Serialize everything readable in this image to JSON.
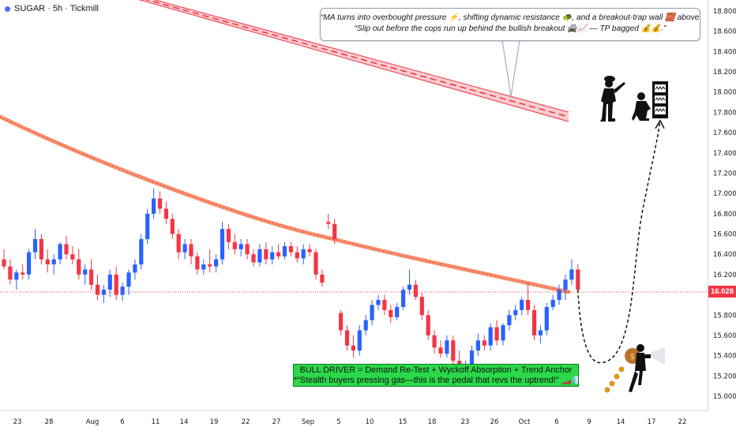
{
  "header": {
    "symbol_title": "SUGAR · 5h · Tickmill"
  },
  "callout": {
    "line1": "“MA turns into overbought pressure ⚡, shifting dynamic resistance 🐢, and a breakout-trap wall 🧱 above price.”",
    "line2": "“Slip out before the cops run up behind the bullish breakout 🚔📈 — TP bagged 💰💰.”"
  },
  "note_box": {
    "line1": "BULL DRIVER = Demand Re-Test + Wyckoff Absorption + Trend Anchor",
    "line2": "*“Stealth buyers pressing gas—this is the pedal that revs the uptrend!” 🏎️💨"
  },
  "last_price": "16.028",
  "colors": {
    "up": "#2962ff",
    "down": "#f23645",
    "ma": "#f7835f",
    "channel": "#f23645",
    "note_bg": "#2bd84a"
  },
  "icons": [
    "police-officer-icon",
    "thief-at-safe-icon",
    "thief-with-money-bag-icon",
    "coins-icon"
  ],
  "chart_data": {
    "type": "candlestick",
    "y_ticks": [
      "18.800",
      "18.600",
      "18.400",
      "18.200",
      "18.000",
      "17.800",
      "17.600",
      "17.400",
      "17.200",
      "17.000",
      "16.800",
      "16.600",
      "16.400",
      "16.200",
      "16.000",
      "15.800",
      "15.600",
      "15.400",
      "15.200",
      "15.000"
    ],
    "y_tick_values": [
      18.8,
      18.6,
      18.4,
      18.2,
      18.0,
      17.8,
      17.6,
      17.4,
      17.2,
      17.0,
      16.8,
      16.6,
      16.4,
      16.2,
      16.0,
      15.8,
      15.6,
      15.4,
      15.2,
      15.0
    ],
    "x_ticks": [
      "23",
      "28",
      "Aug",
      "6",
      "11",
      "14",
      "19",
      "22",
      "27",
      "Sep",
      "5",
      "10",
      "15",
      "18",
      "23",
      "26",
      "Oct",
      "6",
      "9",
      "14",
      "17",
      "22"
    ],
    "last_price_value": 16.028,
    "projection": {
      "from": 16.05,
      "dip_low": 15.33,
      "target": 17.72
    },
    "candles": [
      {
        "o": 16.35,
        "h": 16.45,
        "l": 16.25,
        "c": 16.28
      },
      {
        "o": 16.28,
        "h": 16.35,
        "l": 16.1,
        "c": 16.15
      },
      {
        "o": 16.15,
        "h": 16.25,
        "l": 16.05,
        "c": 16.22
      },
      {
        "o": 16.22,
        "h": 16.3,
        "l": 16.15,
        "c": 16.2
      },
      {
        "o": 16.2,
        "h": 16.45,
        "l": 16.15,
        "c": 16.42
      },
      {
        "o": 16.42,
        "h": 16.65,
        "l": 16.35,
        "c": 16.55
      },
      {
        "o": 16.55,
        "h": 16.6,
        "l": 16.3,
        "c": 16.35
      },
      {
        "o": 16.35,
        "h": 16.45,
        "l": 16.22,
        "c": 16.3
      },
      {
        "o": 16.3,
        "h": 16.4,
        "l": 16.2,
        "c": 16.35
      },
      {
        "o": 16.35,
        "h": 16.52,
        "l": 16.3,
        "c": 16.5
      },
      {
        "o": 16.5,
        "h": 16.58,
        "l": 16.35,
        "c": 16.4
      },
      {
        "o": 16.4,
        "h": 16.48,
        "l": 16.3,
        "c": 16.35
      },
      {
        "o": 16.35,
        "h": 16.45,
        "l": 16.15,
        "c": 16.2
      },
      {
        "o": 16.2,
        "h": 16.3,
        "l": 16.1,
        "c": 16.25
      },
      {
        "o": 16.25,
        "h": 16.35,
        "l": 16.05,
        "c": 16.1
      },
      {
        "o": 16.1,
        "h": 16.2,
        "l": 15.95,
        "c": 16.0
      },
      {
        "o": 16.0,
        "h": 16.1,
        "l": 15.92,
        "c": 16.05
      },
      {
        "o": 16.05,
        "h": 16.25,
        "l": 15.98,
        "c": 16.2
      },
      {
        "o": 16.2,
        "h": 16.28,
        "l": 15.95,
        "c": 16.0
      },
      {
        "o": 16.0,
        "h": 16.12,
        "l": 15.94,
        "c": 16.08
      },
      {
        "o": 16.08,
        "h": 16.25,
        "l": 16.0,
        "c": 16.22
      },
      {
        "o": 16.22,
        "h": 16.35,
        "l": 16.15,
        "c": 16.3
      },
      {
        "o": 16.3,
        "h": 16.6,
        "l": 16.25,
        "c": 16.55
      },
      {
        "o": 16.55,
        "h": 16.85,
        "l": 16.5,
        "c": 16.8
      },
      {
        "o": 16.8,
        "h": 17.05,
        "l": 16.75,
        "c": 16.95
      },
      {
        "o": 16.95,
        "h": 17.02,
        "l": 16.8,
        "c": 16.85
      },
      {
        "o": 16.85,
        "h": 16.92,
        "l": 16.7,
        "c": 16.75
      },
      {
        "o": 16.75,
        "h": 16.8,
        "l": 16.55,
        "c": 16.6
      },
      {
        "o": 16.6,
        "h": 16.65,
        "l": 16.35,
        "c": 16.42
      },
      {
        "o": 16.42,
        "h": 16.55,
        "l": 16.35,
        "c": 16.5
      },
      {
        "o": 16.5,
        "h": 16.55,
        "l": 16.3,
        "c": 16.38
      },
      {
        "o": 16.38,
        "h": 16.42,
        "l": 16.2,
        "c": 16.25
      },
      {
        "o": 16.25,
        "h": 16.35,
        "l": 16.2,
        "c": 16.3
      },
      {
        "o": 16.3,
        "h": 16.45,
        "l": 16.22,
        "c": 16.28
      },
      {
        "o": 16.28,
        "h": 16.4,
        "l": 16.22,
        "c": 16.35
      },
      {
        "o": 16.35,
        "h": 16.72,
        "l": 16.3,
        "c": 16.65
      },
      {
        "o": 16.65,
        "h": 16.7,
        "l": 16.45,
        "c": 16.52
      },
      {
        "o": 16.52,
        "h": 16.6,
        "l": 16.4,
        "c": 16.45
      },
      {
        "o": 16.45,
        "h": 16.55,
        "l": 16.38,
        "c": 16.5
      },
      {
        "o": 16.5,
        "h": 16.55,
        "l": 16.35,
        "c": 16.4
      },
      {
        "o": 16.4,
        "h": 16.45,
        "l": 16.28,
        "c": 16.32
      },
      {
        "o": 16.32,
        "h": 16.5,
        "l": 16.28,
        "c": 16.45
      },
      {
        "o": 16.45,
        "h": 16.52,
        "l": 16.3,
        "c": 16.35
      },
      {
        "o": 16.35,
        "h": 16.48,
        "l": 16.3,
        "c": 16.42
      },
      {
        "o": 16.42,
        "h": 16.5,
        "l": 16.35,
        "c": 16.38
      },
      {
        "o": 16.38,
        "h": 16.52,
        "l": 16.35,
        "c": 16.48
      },
      {
        "o": 16.48,
        "h": 16.52,
        "l": 16.38,
        "c": 16.42
      },
      {
        "o": 16.42,
        "h": 16.48,
        "l": 16.32,
        "c": 16.36
      },
      {
        "o": 16.36,
        "h": 16.5,
        "l": 16.3,
        "c": 16.45
      },
      {
        "o": 16.45,
        "h": 16.5,
        "l": 16.38,
        "c": 16.42
      },
      {
        "o": 16.42,
        "h": 16.45,
        "l": 16.15,
        "c": 16.2
      },
      {
        "o": 16.2,
        "h": 16.25,
        "l": 16.08,
        "c": 16.12
      },
      {
        "o": 16.72,
        "h": 16.8,
        "l": 16.65,
        "c": 16.7
      },
      {
        "o": 16.7,
        "h": 16.75,
        "l": 16.5,
        "c": 16.55
      },
      {
        "o": 15.82,
        "h": 15.85,
        "l": 15.6,
        "c": 15.65
      },
      {
        "o": 15.65,
        "h": 15.7,
        "l": 15.45,
        "c": 15.5
      },
      {
        "o": 15.5,
        "h": 15.6,
        "l": 15.38,
        "c": 15.45
      },
      {
        "o": 15.45,
        "h": 15.7,
        "l": 15.4,
        "c": 15.65
      },
      {
        "o": 15.65,
        "h": 15.8,
        "l": 15.6,
        "c": 15.75
      },
      {
        "o": 15.75,
        "h": 15.95,
        "l": 15.7,
        "c": 15.9
      },
      {
        "o": 15.9,
        "h": 16.0,
        "l": 15.85,
        "c": 15.95
      },
      {
        "o": 15.95,
        "h": 16.0,
        "l": 15.8,
        "c": 15.85
      },
      {
        "o": 15.85,
        "h": 15.9,
        "l": 15.72,
        "c": 15.78
      },
      {
        "o": 15.78,
        "h": 15.92,
        "l": 15.75,
        "c": 15.88
      },
      {
        "o": 15.88,
        "h": 16.08,
        "l": 15.85,
        "c": 16.05
      },
      {
        "o": 16.05,
        "h": 16.25,
        "l": 16.0,
        "c": 16.1
      },
      {
        "o": 16.1,
        "h": 16.15,
        "l": 15.95,
        "c": 15.98
      },
      {
        "o": 15.98,
        "h": 16.02,
        "l": 15.75,
        "c": 15.8
      },
      {
        "o": 15.8,
        "h": 15.85,
        "l": 15.55,
        "c": 15.6
      },
      {
        "o": 15.6,
        "h": 15.65,
        "l": 15.42,
        "c": 15.48
      },
      {
        "o": 15.48,
        "h": 15.55,
        "l": 15.38,
        "c": 15.42
      },
      {
        "o": 15.42,
        "h": 15.6,
        "l": 15.38,
        "c": 15.55
      },
      {
        "o": 15.55,
        "h": 15.6,
        "l": 15.3,
        "c": 15.35
      },
      {
        "o": 15.35,
        "h": 15.45,
        "l": 15.2,
        "c": 15.25
      },
      {
        "o": 15.25,
        "h": 15.35,
        "l": 15.15,
        "c": 15.3
      },
      {
        "o": 15.3,
        "h": 15.5,
        "l": 15.25,
        "c": 15.45
      },
      {
        "o": 15.45,
        "h": 15.62,
        "l": 15.4,
        "c": 15.55
      },
      {
        "o": 15.55,
        "h": 15.6,
        "l": 15.45,
        "c": 15.5
      },
      {
        "o": 15.5,
        "h": 15.72,
        "l": 15.45,
        "c": 15.68
      },
      {
        "o": 15.68,
        "h": 15.75,
        "l": 15.5,
        "c": 15.55
      },
      {
        "o": 15.55,
        "h": 15.72,
        "l": 15.5,
        "c": 15.7
      },
      {
        "o": 15.7,
        "h": 15.85,
        "l": 15.65,
        "c": 15.8
      },
      {
        "o": 15.8,
        "h": 15.9,
        "l": 15.75,
        "c": 15.85
      },
      {
        "o": 15.85,
        "h": 15.98,
        "l": 15.8,
        "c": 15.95
      },
      {
        "o": 15.95,
        "h": 16.12,
        "l": 15.8,
        "c": 15.85
      },
      {
        "o": 15.85,
        "h": 15.9,
        "l": 15.55,
        "c": 15.6
      },
      {
        "o": 15.6,
        "h": 15.7,
        "l": 15.52,
        "c": 15.65
      },
      {
        "o": 15.65,
        "h": 15.92,
        "l": 15.6,
        "c": 15.88
      },
      {
        "o": 15.88,
        "h": 16.0,
        "l": 15.85,
        "c": 15.95
      },
      {
        "o": 15.95,
        "h": 16.1,
        "l": 15.9,
        "c": 16.05
      },
      {
        "o": 16.05,
        "h": 16.2,
        "l": 15.95,
        "c": 16.15
      },
      {
        "o": 16.15,
        "h": 16.35,
        "l": 16.1,
        "c": 16.25
      },
      {
        "o": 16.25,
        "h": 16.3,
        "l": 16.02,
        "c": 16.05
      }
    ]
  }
}
